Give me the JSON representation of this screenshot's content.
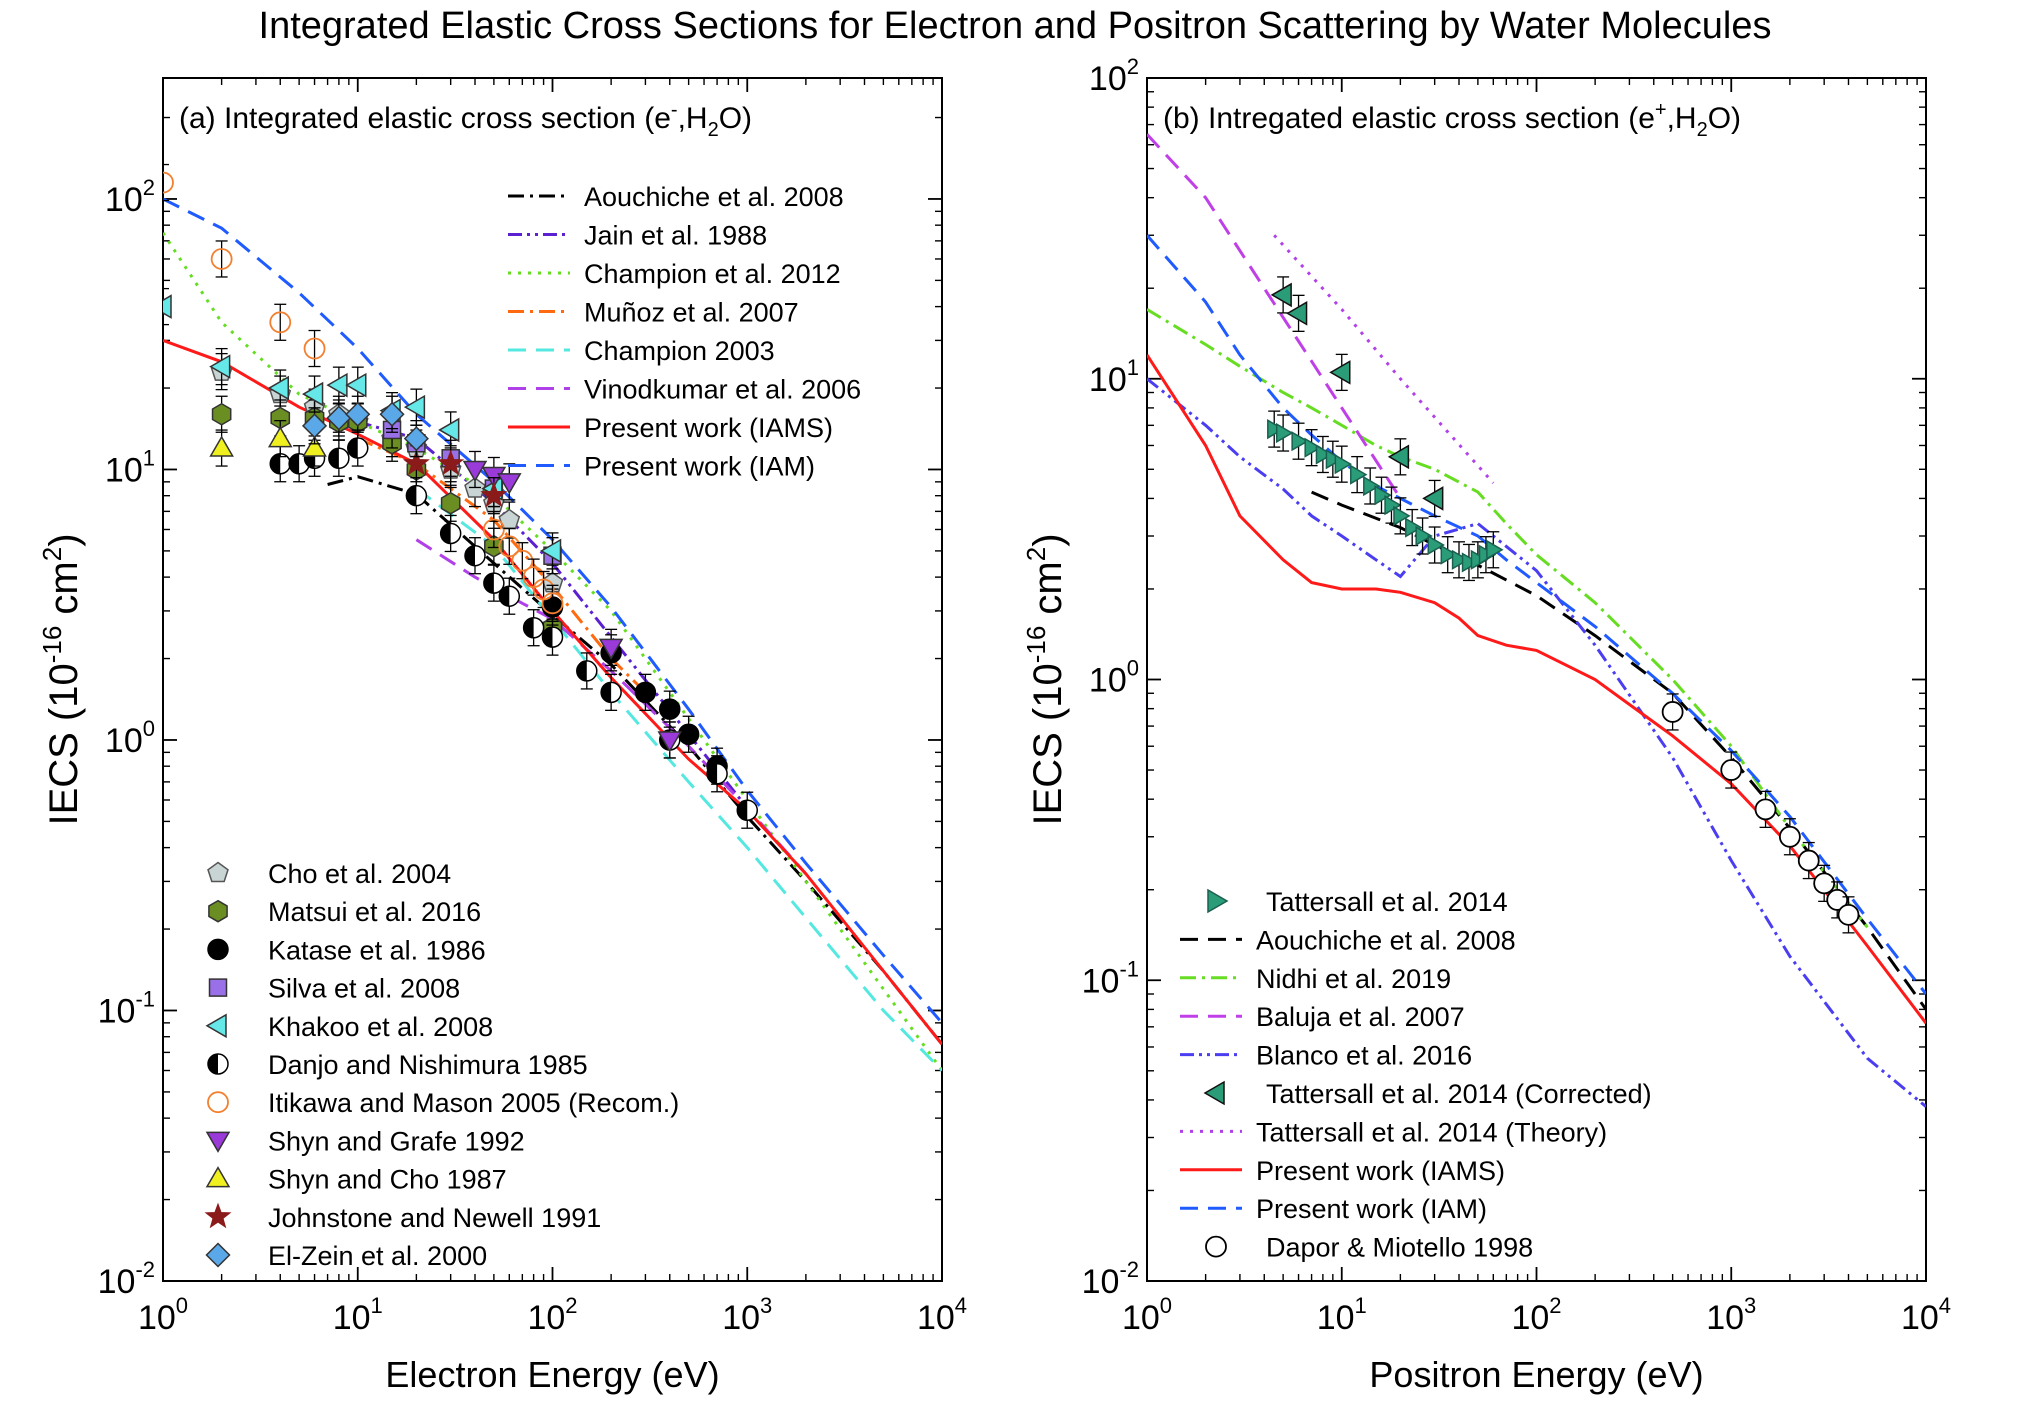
{
  "title": "Integrated Elastic Cross Sections for Electron and Positron Scattering by Water Molecules",
  "chart_data": [
    {
      "type": "line",
      "panel_label": "(a) Integrated elastic cross section (e",
      "panel_sup": "-",
      "panel_mid": ",H",
      "panel_sub": "2",
      "panel_end": "O)",
      "xlabel": "Electron Energy (eV)",
      "ylabel_pre": "IECS (10",
      "ylabel_sup": "-16",
      "ylabel_mid": " cm",
      "ylabel_sup2": "2",
      "ylabel_end": ")",
      "xscale": "log",
      "yscale": "log",
      "xlim": [
        1,
        10000
      ],
      "ylim": [
        0.01,
        280
      ],
      "xticks": [
        {
          "base": "10",
          "exp": "0",
          "v": 1
        },
        {
          "base": "10",
          "exp": "1",
          "v": 10
        },
        {
          "base": "10",
          "exp": "2",
          "v": 100
        },
        {
          "base": "10",
          "exp": "3",
          "v": 1000
        },
        {
          "base": "10",
          "exp": "4",
          "v": 10000
        }
      ],
      "yticks": [
        {
          "base": "10",
          "exp": "-2",
          "v": 0.01
        },
        {
          "base": "10",
          "exp": "-1",
          "v": 0.1
        },
        {
          "base": "10",
          "exp": "0",
          "v": 1
        },
        {
          "base": "10",
          "exp": "1",
          "v": 10
        },
        {
          "base": "10",
          "exp": "2",
          "v": 100
        }
      ],
      "line_legend_position": "top-right",
      "marker_legend_position": "bottom-left",
      "lines": [
        {
          "name": "Aouchiche et al. 2008",
          "color": "#000000",
          "dash": "dashdot",
          "x": [
            7,
            10,
            20,
            50,
            100,
            200,
            500,
            1000,
            2000,
            5000,
            10000
          ],
          "y": [
            8.8,
            9.4,
            8.1,
            4.5,
            2.9,
            1.9,
            0.95,
            0.52,
            0.3,
            0.14,
            0.075
          ]
        },
        {
          "name": "Jain et al. 1988",
          "color": "#5b20d0",
          "dash": "dashdotdot",
          "x": [
            10,
            20,
            50,
            100,
            200,
            500,
            1000
          ],
          "y": [
            15,
            13,
            7.5,
            4.5,
            2.4,
            1.05,
            0.56
          ]
        },
        {
          "name": "Champion et al. 2012",
          "color": "#66dd22",
          "dash": "dot",
          "x": [
            1,
            2,
            5,
            10,
            20,
            50,
            100,
            200,
            500,
            1000,
            2000,
            5000,
            10000
          ],
          "y": [
            75,
            35,
            19,
            15,
            12,
            8,
            5,
            3,
            1.2,
            0.6,
            0.3,
            0.12,
            0.06
          ]
        },
        {
          "name": "Muñoz et al. 2007",
          "color": "#ff6a10",
          "dash": "dashdot",
          "x": [
            10,
            20,
            50,
            100,
            200,
            300
          ],
          "y": [
            13,
            10.5,
            6.5,
            3.7,
            2,
            1.5
          ]
        },
        {
          "name": "Champion 2003",
          "color": "#55e8e0",
          "dash": "dash",
          "x": [
            20,
            50,
            100,
            200,
            500,
            1000,
            2000,
            5000,
            10000
          ],
          "y": [
            8.5,
            5.2,
            2.8,
            1.5,
            0.7,
            0.4,
            0.22,
            0.1,
            0.06
          ]
        },
        {
          "name": "Vinodkumar et al. 2006",
          "color": "#b040e8",
          "dash": "dash",
          "x": [
            20,
            40,
            70,
            100,
            200,
            500,
            1000,
            2000
          ],
          "y": [
            5.5,
            4,
            3.2,
            2.8,
            1.8,
            0.95,
            0.56,
            0.32
          ]
        },
        {
          "name": "Present work (IAMS)",
          "color": "#ff1a1a",
          "dash": "solid",
          "x": [
            1,
            2,
            5,
            10,
            20,
            50,
            100,
            200,
            500,
            1000,
            2000,
            5000,
            10000
          ],
          "y": [
            30,
            25,
            17,
            13.5,
            10.5,
            5.5,
            3,
            1.7,
            0.85,
            0.55,
            0.32,
            0.14,
            0.075
          ]
        },
        {
          "name": "Present work (IAM)",
          "color": "#1f5bff",
          "dash": "dash",
          "x": [
            1,
            2,
            5,
            10,
            20,
            50,
            100,
            200,
            500,
            1000,
            2000,
            5000,
            10000
          ],
          "y": [
            100,
            78,
            45,
            28,
            16,
            9,
            5.5,
            3.1,
            1.3,
            0.65,
            0.35,
            0.16,
            0.09
          ]
        }
      ],
      "markers": [
        {
          "name": "Cho et al. 2004",
          "symbol": "pentagon",
          "fill": "#c9d4d4",
          "stroke": "#555",
          "x": [
            2,
            4,
            6,
            8,
            10,
            15,
            20,
            30,
            40,
            50,
            60,
            100
          ],
          "y": [
            23,
            19,
            17,
            16,
            15,
            13,
            12,
            10,
            8.5,
            7.5,
            6.5,
            3.8
          ]
        },
        {
          "name": "Matsui et al. 2016",
          "symbol": "hexagon",
          "fill": "#6b8e23",
          "stroke": "#333",
          "x": [
            2,
            4,
            6,
            8,
            10,
            15,
            20,
            30,
            50,
            100
          ],
          "y": [
            16,
            15.5,
            15.5,
            15,
            15,
            12.5,
            10,
            7.5,
            5.2,
            2.6
          ]
        },
        {
          "name": "Katase et al. 1986",
          "symbol": "circle",
          "fill": "#000000",
          "stroke": "#000",
          "x": [
            100,
            200,
            300,
            400,
            500,
            700
          ],
          "y": [
            3.1,
            2.1,
            1.5,
            1.3,
            1.05,
            0.8
          ]
        },
        {
          "name": "Silva et al. 2008",
          "symbol": "square",
          "fill": "#9a70e8",
          "stroke": "#333",
          "x": [
            15,
            20,
            30,
            50,
            100
          ],
          "y": [
            14,
            12.5,
            11,
            8.5,
            4.8
          ]
        },
        {
          "name": "Khakoo et al. 2008",
          "symbol": "tri-left",
          "fill": "#66e8e8",
          "stroke": "#333",
          "x": [
            1,
            2,
            4,
            6,
            8,
            10,
            15,
            20,
            30,
            50,
            100
          ],
          "y": [
            40,
            24,
            20,
            19,
            20.5,
            20.5,
            16.5,
            17,
            14,
            8.5,
            5
          ]
        },
        {
          "name": "Danjo and Nishimura 1985",
          "symbol": "halfcircle",
          "fill": "#000000",
          "stroke": "#000",
          "x": [
            4,
            5,
            6,
            8,
            10,
            20,
            30,
            40,
            50,
            60,
            80,
            100,
            150,
            200,
            400,
            700,
            1000
          ],
          "y": [
            10.5,
            10.5,
            11,
            11,
            12,
            8,
            5.8,
            4.8,
            3.8,
            3.4,
            2.6,
            2.4,
            1.8,
            1.5,
            1,
            0.75,
            0.55
          ]
        },
        {
          "name": "Itikawa and Mason 2005 (Recom.)",
          "symbol": "opencircle",
          "fill": "none",
          "stroke": "#f28030",
          "x": [
            1,
            2,
            4,
            6,
            50,
            60,
            70,
            80,
            90,
            100
          ],
          "y": [
            115,
            60,
            35,
            28,
            6,
            5.2,
            4.6,
            4,
            3.6,
            3.2
          ]
        },
        {
          "name": "Shyn and Grafe 1992",
          "symbol": "tri-down",
          "fill": "#9a3ad8",
          "stroke": "#333",
          "x": [
            40,
            50,
            60,
            200,
            400
          ],
          "y": [
            10,
            9.5,
            9,
            2.2,
            1
          ]
        },
        {
          "name": "Shyn and Cho 1987",
          "symbol": "tri-up",
          "fill": "#f0f020",
          "stroke": "#333",
          "x": [
            2,
            4,
            6
          ],
          "y": [
            12,
            13,
            12
          ]
        },
        {
          "name": "Johnstone and Newell 1991",
          "symbol": "star",
          "fill": "#8b1a1a",
          "stroke": "#8b1a1a",
          "x": [
            20,
            30,
            50
          ],
          "y": [
            10.5,
            10.5,
            8
          ]
        },
        {
          "name": "El-Zein et al. 2000",
          "symbol": "diamond",
          "fill": "#5aa8e8",
          "stroke": "#333",
          "x": [
            6,
            8,
            10,
            15,
            20
          ],
          "y": [
            14.5,
            15.5,
            16,
            16,
            13
          ]
        }
      ]
    },
    {
      "type": "line",
      "panel_label": "(b) Intregated elastic cross section (e",
      "panel_sup": "+",
      "panel_mid": ",H",
      "panel_sub": "2",
      "panel_end": "O)",
      "xlabel": "Positron Energy (eV)",
      "ylabel_pre": "IECS (10",
      "ylabel_sup": "-16",
      "ylabel_mid": " cm",
      "ylabel_sup2": "2",
      "ylabel_end": ")",
      "xscale": "log",
      "yscale": "log",
      "xlim": [
        1,
        10000
      ],
      "ylim": [
        0.01,
        100
      ],
      "xticks": [
        {
          "base": "10",
          "exp": "0",
          "v": 1
        },
        {
          "base": "10",
          "exp": "1",
          "v": 10
        },
        {
          "base": "10",
          "exp": "2",
          "v": 100
        },
        {
          "base": "10",
          "exp": "3",
          "v": 1000
        },
        {
          "base": "10",
          "exp": "4",
          "v": 10000
        }
      ],
      "yticks": [
        {
          "base": "10",
          "exp": "-2",
          "v": 0.01
        },
        {
          "base": "10",
          "exp": "-1",
          "v": 0.1
        },
        {
          "base": "10",
          "exp": "0",
          "v": 1
        },
        {
          "base": "10",
          "exp": "1",
          "v": 10
        },
        {
          "base": "10",
          "exp": "2",
          "v": 100
        }
      ],
      "legend_position": "bottom-left",
      "lines": [
        {
          "name": "Aouchiche et al. 2008",
          "color": "#000000",
          "dash": "dash",
          "x": [
            7,
            10,
            20,
            30,
            50,
            100,
            200,
            500,
            1000,
            2000,
            5000,
            10000
          ],
          "y": [
            4.2,
            3.8,
            3.2,
            2.8,
            2.4,
            1.9,
            1.4,
            0.9,
            0.55,
            0.32,
            0.15,
            0.08
          ]
        },
        {
          "name": "Nidhi et al. 2019",
          "color": "#66dd22",
          "dash": "dashdot",
          "x": [
            1,
            2,
            3,
            5,
            7,
            10,
            15,
            20,
            30,
            50,
            70,
            100,
            200,
            500,
            1000,
            2000,
            5000
          ],
          "y": [
            17,
            13,
            11,
            9,
            8,
            7,
            6,
            5.5,
            5,
            4.2,
            3.3,
            2.6,
            1.8,
            1,
            0.6,
            0.32,
            0.15
          ]
        },
        {
          "name": "Baluja et al. 2007",
          "color": "#c040e8",
          "dash": "dash",
          "x": [
            1,
            2,
            5,
            10,
            20
          ],
          "y": [
            65,
            40,
            16,
            8,
            4
          ]
        },
        {
          "name": "Blanco et al. 2016",
          "color": "#4a3ef0",
          "dash": "dashdotdot",
          "x": [
            1,
            2,
            3,
            5,
            7,
            10,
            15,
            20,
            30,
            50,
            100,
            200,
            500,
            1000,
            2000,
            5000,
            10000
          ],
          "y": [
            10,
            7,
            5.5,
            4.3,
            3.5,
            3,
            2.5,
            2.2,
            3,
            3.3,
            2.3,
            1.3,
            0.55,
            0.25,
            0.12,
            0.055,
            0.038
          ]
        },
        {
          "name": "Tattersall et al. 2014 (Theory)",
          "color": "#b040e8",
          "dash": "dot",
          "x": [
            4.5,
            10,
            20,
            60
          ],
          "y": [
            30,
            17,
            10,
            4.5
          ]
        },
        {
          "name": "Present work (IAMS)",
          "color": "#ff1a1a",
          "dash": "solid",
          "x": [
            1,
            2,
            3,
            5,
            7,
            10,
            15,
            20,
            30,
            40,
            50,
            70,
            100,
            200,
            500,
            1000,
            2000,
            5000,
            10000
          ],
          "y": [
            12,
            6,
            3.5,
            2.5,
            2.1,
            2,
            2,
            1.95,
            1.8,
            1.6,
            1.4,
            1.3,
            1.25,
            1,
            0.65,
            0.45,
            0.28,
            0.13,
            0.072
          ]
        },
        {
          "name": "Present work (IAM)",
          "color": "#1f5bff",
          "dash": "dash",
          "x": [
            1,
            2,
            3,
            5,
            7,
            10,
            15,
            20,
            30,
            50,
            70,
            100,
            200,
            500,
            1000,
            2000,
            5000,
            10000
          ],
          "y": [
            30,
            18,
            12,
            8,
            6.5,
            5.3,
            4.4,
            4,
            3.5,
            3,
            2.5,
            2.1,
            1.5,
            0.9,
            0.58,
            0.35,
            0.16,
            0.09
          ]
        }
      ],
      "markers": [
        {
          "name": "Tattersall et al. 2014",
          "symbol": "tri-right",
          "fill": "#2a9d78",
          "stroke": "#1a6050",
          "x": [
            4.5,
            5,
            6,
            7,
            8,
            9,
            10,
            12,
            14,
            16,
            18,
            20,
            23,
            26,
            30,
            35,
            40,
            45,
            50,
            55,
            60
          ],
          "y": [
            6.8,
            6.6,
            6.2,
            5.9,
            5.6,
            5.4,
            5.2,
            4.8,
            4.4,
            4.1,
            3.8,
            3.5,
            3.2,
            3,
            2.8,
            2.6,
            2.5,
            2.45,
            2.5,
            2.6,
            2.7
          ]
        },
        {
          "name": "Tattersall et al. 2014 (Corrected)",
          "symbol": "tri-left",
          "fill": "#2a9d78",
          "stroke": "#111",
          "x": [
            5,
            6,
            10,
            20,
            30
          ],
          "y": [
            19,
            16.5,
            10.5,
            5.5,
            4
          ]
        },
        {
          "name": "Dapor & Miotello 1998",
          "symbol": "opencircle",
          "fill": "#ffffff",
          "stroke": "#000",
          "x": [
            500,
            1000,
            1500,
            2000,
            2500,
            3000,
            3500,
            4000
          ],
          "y": [
            0.78,
            0.5,
            0.37,
            0.3,
            0.25,
            0.21,
            0.185,
            0.165
          ]
        }
      ],
      "legend_order": [
        {
          "kind": "marker",
          "ref": 0
        },
        {
          "kind": "line",
          "ref": 0
        },
        {
          "kind": "line",
          "ref": 1
        },
        {
          "kind": "line",
          "ref": 2
        },
        {
          "kind": "line",
          "ref": 3
        },
        {
          "kind": "marker",
          "ref": 1
        },
        {
          "kind": "line",
          "ref": 4
        },
        {
          "kind": "line",
          "ref": 5
        },
        {
          "kind": "line",
          "ref": 6
        },
        {
          "kind": "marker",
          "ref": 2
        }
      ]
    }
  ]
}
